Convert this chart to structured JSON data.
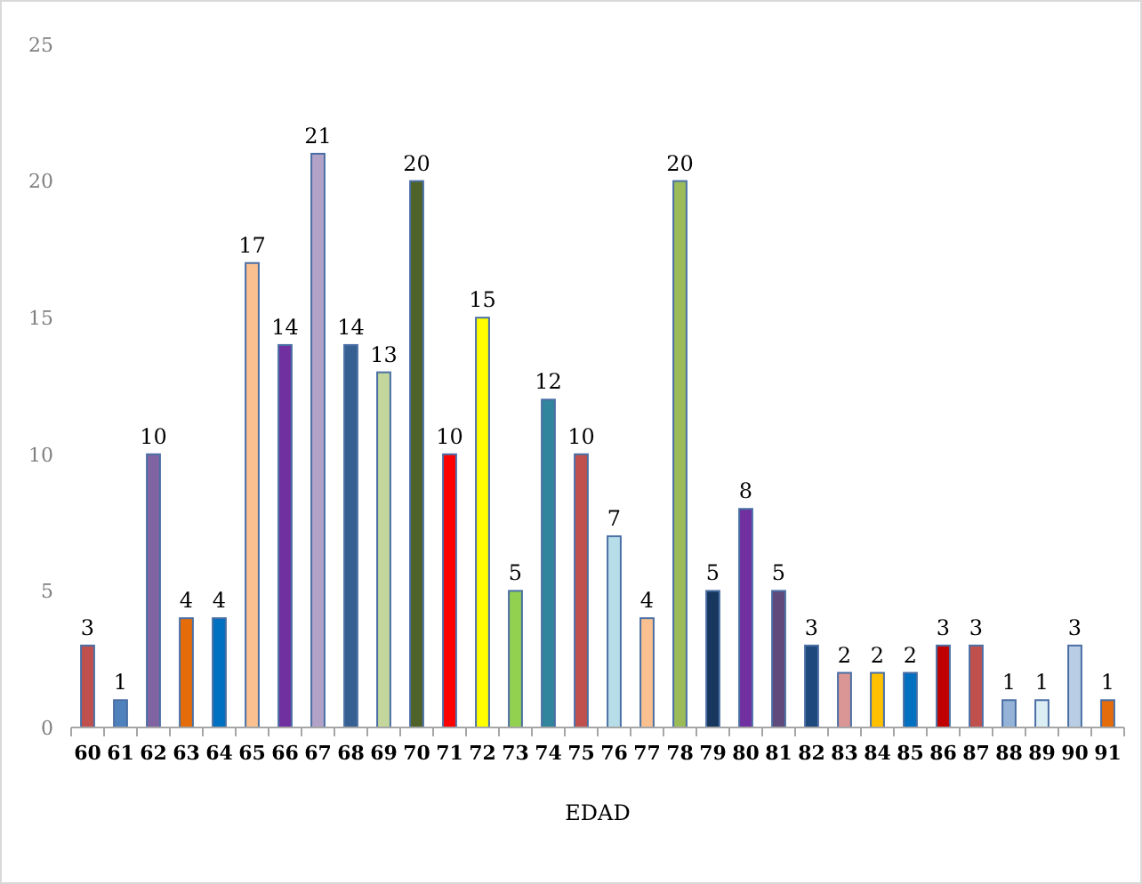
{
  "chart_data": {
    "type": "bar",
    "xlabel": "EDAD",
    "categories": [
      "60",
      "61",
      "62",
      "63",
      "64",
      "65",
      "66",
      "67",
      "68",
      "69",
      "70",
      "71",
      "72",
      "73",
      "74",
      "75",
      "76",
      "77",
      "78",
      "79",
      "80",
      "81",
      "82",
      "83",
      "84",
      "85",
      "86",
      "87",
      "88",
      "89",
      "90",
      "91"
    ],
    "values": [
      3,
      1,
      10,
      4,
      4,
      17,
      14,
      21,
      14,
      13,
      20,
      10,
      15,
      5,
      12,
      10,
      7,
      4,
      20,
      5,
      8,
      5,
      3,
      2,
      2,
      2,
      3,
      3,
      1,
      1,
      3,
      1
    ],
    "colors": [
      "#c0504d",
      "#4f81bd",
      "#8064a2",
      "#e46c0a",
      "#0070c0",
      "#fac090",
      "#7030a0",
      "#b3a2c7",
      "#376092",
      "#c3d69b",
      "#4f6228",
      "#ff0000",
      "#ffff00",
      "#92d050",
      "#31859c",
      "#c0504d",
      "#b7dee8",
      "#fac090",
      "#9bbb59",
      "#17375e",
      "#7030a0",
      "#604a7b",
      "#1f497d",
      "#d99694",
      "#ffc000",
      "#0070c0",
      "#c00000",
      "#c0504d",
      "#95b3d7",
      "#dbeef4",
      "#b9cde5",
      "#e46c0a"
    ],
    "ylim": [
      0,
      25
    ],
    "yticks": [
      0,
      5,
      10,
      15,
      20,
      25
    ],
    "data_labels": true,
    "grid": false
  }
}
